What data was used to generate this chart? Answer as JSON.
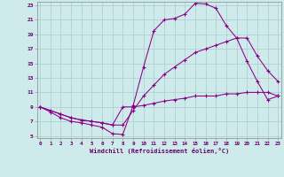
{
  "xlabel": "Windchill (Refroidissement éolien,°C)",
  "bg_color": "#ceeaea",
  "line_color": "#880088",
  "grid_color": "#aacccc",
  "xmin": 0,
  "xmax": 23,
  "ymin": 5,
  "ymax": 23,
  "yticks": [
    5,
    7,
    9,
    11,
    13,
    15,
    17,
    19,
    21,
    23
  ],
  "xticks": [
    0,
    1,
    2,
    3,
    4,
    5,
    6,
    7,
    8,
    9,
    10,
    11,
    12,
    13,
    14,
    15,
    16,
    17,
    18,
    19,
    20,
    21,
    22,
    23
  ],
  "curve1_x": [
    0,
    1,
    2,
    3,
    4,
    5,
    6,
    7,
    8,
    9,
    10,
    11,
    12,
    13,
    14,
    15,
    16,
    17,
    18,
    19,
    20,
    21,
    22,
    23
  ],
  "curve1_y": [
    9.0,
    8.3,
    7.5,
    7.0,
    6.8,
    6.5,
    6.2,
    5.3,
    5.2,
    9.2,
    14.5,
    19.5,
    21.0,
    21.2,
    21.8,
    23.3,
    23.2,
    22.6,
    20.2,
    18.5,
    15.3,
    12.5,
    10.0,
    10.5
  ],
  "curve2_x": [
    0,
    1,
    2,
    3,
    4,
    5,
    6,
    7,
    8,
    9,
    10,
    11,
    12,
    13,
    14,
    15,
    16,
    17,
    18,
    19,
    20,
    21,
    22,
    23
  ],
  "curve2_y": [
    9.0,
    8.5,
    8.0,
    7.5,
    7.2,
    7.0,
    6.8,
    6.5,
    6.5,
    8.5,
    10.5,
    12.0,
    13.5,
    14.5,
    15.5,
    16.5,
    17.0,
    17.5,
    18.0,
    18.5,
    18.5,
    16.0,
    14.0,
    12.5
  ],
  "curve3_x": [
    0,
    2,
    3,
    4,
    5,
    6,
    7,
    8,
    9,
    10,
    11,
    12,
    13,
    14,
    15,
    16,
    17,
    18,
    19,
    20,
    21,
    22,
    23
  ],
  "curve3_y": [
    9.0,
    8.0,
    7.5,
    7.2,
    7.0,
    6.8,
    6.5,
    9.0,
    9.0,
    9.2,
    9.5,
    9.8,
    10.0,
    10.2,
    10.5,
    10.5,
    10.5,
    10.8,
    10.8,
    11.0,
    11.0,
    11.0,
    10.5
  ]
}
